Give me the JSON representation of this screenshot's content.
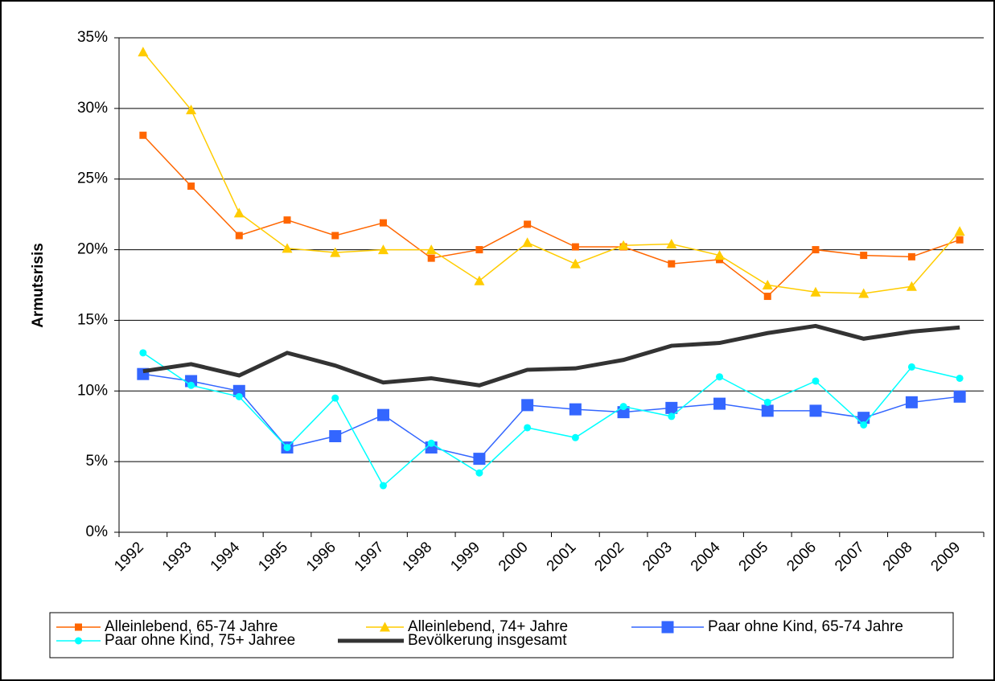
{
  "chart_data": {
    "type": "line",
    "y_label": "Armutsrisis",
    "categories": [
      "1992",
      "1993",
      "1994",
      "1995",
      "1996",
      "1997",
      "1998",
      "1999",
      "2000",
      "2001",
      "2002",
      "2003",
      "2004",
      "2005",
      "2006",
      "2007",
      "2008",
      "2009"
    ],
    "ylim": [
      0,
      35
    ],
    "yticks": [
      {
        "value": 0,
        "label": "0%"
      },
      {
        "value": 5,
        "label": "5%"
      },
      {
        "value": 10,
        "label": "10%"
      },
      {
        "value": 15,
        "label": "15%"
      },
      {
        "value": 20,
        "label": "20%"
      },
      {
        "value": 25,
        "label": "25%"
      },
      {
        "value": 30,
        "label": "30%"
      },
      {
        "value": 35,
        "label": "35%"
      }
    ],
    "grid": true,
    "legend": "bottom",
    "series": [
      {
        "name": "Alleinlebend, 65-74 Jahre",
        "color": "#ff6600",
        "marker": "square",
        "values": [
          28.1,
          24.5,
          21.0,
          22.1,
          21.0,
          21.9,
          19.4,
          20.0,
          21.8,
          20.2,
          20.2,
          19.0,
          19.3,
          16.7,
          20.0,
          19.6,
          19.5,
          20.7
        ]
      },
      {
        "name": "Alleinlebend, 74+ Jahre",
        "color": "#ffcc00",
        "marker": "triangle",
        "values": [
          34.0,
          29.9,
          22.6,
          20.1,
          19.8,
          20.0,
          20.0,
          17.8,
          20.5,
          19.0,
          20.3,
          20.4,
          19.6,
          17.5,
          17.0,
          16.9,
          17.4,
          21.3
        ]
      },
      {
        "name": "Paar ohne Kind, 65-74 Jahre",
        "color": "#3366ff",
        "marker": "square",
        "values": [
          11.2,
          10.7,
          10.0,
          6.0,
          6.8,
          8.3,
          6.0,
          5.2,
          9.0,
          8.7,
          8.5,
          8.8,
          9.1,
          8.6,
          8.6,
          8.1,
          9.2,
          9.6
        ]
      },
      {
        "name": "Paar ohne Kind, 75+ Jahree",
        "color": "#00ffff",
        "marker": "circle",
        "values": [
          12.7,
          10.4,
          9.6,
          6.0,
          9.5,
          3.3,
          6.3,
          4.2,
          7.4,
          6.7,
          8.9,
          8.2,
          11.0,
          9.2,
          10.7,
          7.6,
          11.7,
          10.9
        ]
      },
      {
        "name": "Bevölkerung insgesamt",
        "color": "#333333",
        "marker": null,
        "values": [
          11.4,
          11.9,
          11.1,
          12.7,
          11.8,
          10.6,
          10.9,
          10.4,
          11.5,
          11.6,
          12.2,
          13.2,
          13.4,
          14.1,
          14.6,
          13.7,
          14.2,
          14.5
        ]
      }
    ]
  }
}
